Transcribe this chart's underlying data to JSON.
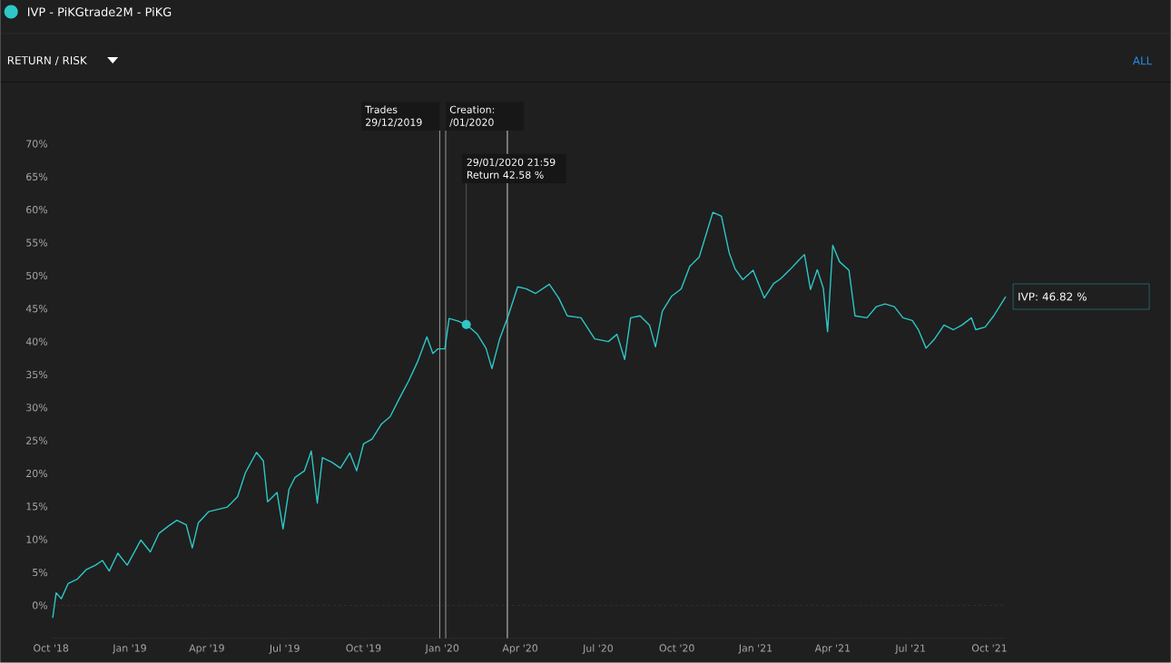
{
  "chart_data": {
    "type": "line",
    "annotations": [
      "RETURN / RISK",
      "ALL",
      {
        "text": "29/01/2020 21:59 Return 42.58 %",
        "x": "2020-01-29",
        "y": 42.58
      },
      {
        "text": "IVP: 46.82 %",
        "x": "2021-10-20",
        "y": 46.82
      }
    ],
    "series": [
      {
        "name": "IVP - PiKGtrade2M - PiKG",
        "color": "#2ec7c7",
        "x": [
          "2018-10-03",
          "2018-10-07",
          "2018-10-13",
          "2018-10-21",
          "2018-11-01",
          "2018-11-11",
          "2018-11-22",
          "2018-11-30",
          "2018-12-08",
          "2018-12-18",
          "2018-12-29",
          "2019-01-14",
          "2019-01-25",
          "2019-02-04",
          "2019-02-15",
          "2019-02-25",
          "2019-03-08",
          "2019-03-15",
          "2019-03-22",
          "2019-04-03",
          "2019-04-25",
          "2019-05-07",
          "2019-05-16",
          "2019-05-29",
          "2019-06-06",
          "2019-06-11",
          "2019-06-22",
          "2019-06-29",
          "2019-07-06",
          "2019-07-13",
          "2019-07-24",
          "2019-08-01",
          "2019-08-08",
          "2019-08-14",
          "2019-08-25",
          "2019-09-04",
          "2019-09-15",
          "2019-09-23",
          "2019-10-01",
          "2019-10-11",
          "2019-10-22",
          "2019-11-01",
          "2019-11-12",
          "2019-11-23",
          "2019-12-03",
          "2019-12-14",
          "2019-12-21",
          "2019-12-27",
          "2020-01-04",
          "2020-01-09",
          "2020-01-20",
          "2020-01-31",
          "2020-02-11",
          "2020-02-21",
          "2020-02-28",
          "2020-03-08",
          "2020-03-18",
          "2020-03-29",
          "2020-04-08",
          "2020-04-19",
          "2020-05-05",
          "2020-05-16",
          "2020-05-26",
          "2020-06-11",
          "2020-06-27",
          "2020-07-13",
          "2020-07-23",
          "2020-08-01",
          "2020-08-08",
          "2020-08-19",
          "2020-08-30",
          "2020-09-06",
          "2020-09-14",
          "2020-09-25",
          "2020-10-06",
          "2020-10-16",
          "2020-10-27",
          "2020-11-04",
          "2020-11-12",
          "2020-11-22",
          "2020-12-01",
          "2020-12-08",
          "2020-12-17",
          "2020-12-29",
          "2021-01-11",
          "2021-01-22",
          "2021-01-30",
          "2021-02-10",
          "2021-02-20",
          "2021-02-27",
          "2021-03-06",
          "2021-03-14",
          "2021-03-21",
          "2021-03-26",
          "2021-04-01",
          "2021-04-09",
          "2021-04-20",
          "2021-04-27",
          "2021-05-11",
          "2021-05-22",
          "2021-06-01",
          "2021-06-12",
          "2021-06-22",
          "2021-07-03",
          "2021-07-10",
          "2021-07-19",
          "2021-07-29",
          "2021-08-09",
          "2021-08-20",
          "2021-08-30",
          "2021-09-10",
          "2021-09-15",
          "2021-09-26",
          "2021-10-06",
          "2021-10-20"
        ],
        "values": [
          -1.9,
          1.9,
          1.0,
          3.3,
          4.0,
          5.4,
          6.1,
          6.8,
          5.2,
          7.9,
          6.1,
          9.9,
          8.1,
          10.9,
          12.0,
          12.9,
          12.2,
          8.7,
          12.5,
          14.2,
          14.9,
          16.5,
          20.1,
          23.2,
          21.9,
          15.7,
          17.1,
          11.6,
          17.6,
          19.4,
          20.4,
          23.4,
          15.5,
          22.4,
          21.7,
          20.8,
          23.1,
          20.4,
          24.5,
          25.2,
          27.5,
          28.6,
          31.4,
          34.1,
          36.9,
          40.7,
          38.2,
          38.9,
          38.9,
          43.5,
          43.1,
          42.4,
          41.1,
          39.0,
          35.9,
          40.4,
          43.9,
          48.3,
          48.0,
          47.3,
          48.7,
          46.6,
          43.9,
          43.6,
          40.4,
          40.0,
          41.1,
          37.3,
          43.6,
          43.9,
          42.5,
          39.2,
          44.6,
          46.9,
          48.0,
          51.4,
          52.8,
          56.2,
          59.6,
          59.0,
          53.5,
          51.0,
          49.4,
          50.8,
          46.6,
          48.8,
          49.5,
          50.9,
          52.3,
          53.2,
          47.9,
          50.9,
          48.1,
          41.5,
          54.6,
          52.1,
          50.8,
          43.9,
          43.6,
          45.3,
          45.7,
          45.3,
          43.6,
          43.2,
          41.8,
          39.0,
          40.4,
          42.5,
          41.8,
          42.5,
          43.6,
          41.8,
          42.2,
          43.9,
          46.82
        ]
      }
    ],
    "xlim": [
      "2018-10-01",
      "2021-10-20"
    ],
    "xticks": [
      {
        "value": "2018-10-01",
        "label": "Oct '18"
      },
      {
        "value": "2019-01-01",
        "label": "Jan '19"
      },
      {
        "value": "2019-04-01",
        "label": "Apr '19"
      },
      {
        "value": "2019-07-01",
        "label": "Jul '19"
      },
      {
        "value": "2019-10-01",
        "label": "Oct '19"
      },
      {
        "value": "2020-01-01",
        "label": "Jan '20"
      },
      {
        "value": "2020-04-01",
        "label": "Apr '20"
      },
      {
        "value": "2020-07-01",
        "label": "Jul '20"
      },
      {
        "value": "2020-10-01",
        "label": "Oct '20"
      },
      {
        "value": "2021-01-01",
        "label": "Jan '21"
      },
      {
        "value": "2021-04-01",
        "label": "Apr '21"
      },
      {
        "value": "2021-07-01",
        "label": "Jul '21"
      },
      {
        "value": "2021-10-01",
        "label": "Oct '21"
      }
    ],
    "ylim": [
      -5,
      72
    ],
    "yticks": [
      {
        "value": 0,
        "label": "0%"
      },
      {
        "value": 5,
        "label": "5%"
      },
      {
        "value": 10,
        "label": "10%"
      },
      {
        "value": 15,
        "label": "15%"
      },
      {
        "value": 20,
        "label": "20%"
      },
      {
        "value": 25,
        "label": "25%"
      },
      {
        "value": 30,
        "label": "30%"
      },
      {
        "value": 35,
        "label": "35%"
      },
      {
        "value": 40,
        "label": "40%"
      },
      {
        "value": 45,
        "label": "45%"
      },
      {
        "value": 50,
        "label": "50%"
      },
      {
        "value": 55,
        "label": "55%"
      },
      {
        "value": 60,
        "label": "60%"
      },
      {
        "value": 65,
        "label": "65%"
      },
      {
        "value": 70,
        "label": "70%"
      }
    ],
    "ref_lines": [
      {
        "axis": "y",
        "value": 0,
        "color": "#4a4a4a",
        "line_style": "dashed"
      },
      {
        "axis": "x",
        "value": "2019-12-29",
        "label": "Trades 29/12/2019",
        "color": "#9a9a9a"
      },
      {
        "axis": "x",
        "value": "2020-01-05",
        "label": "Creation: /01/2020",
        "color": "#9a9a9a"
      },
      {
        "axis": "x",
        "value": "2020-03-17",
        "color": "#d0d0d0"
      }
    ],
    "legend": "top left",
    "grid": false,
    "marker": "none",
    "line_style": "solid"
  }
}
